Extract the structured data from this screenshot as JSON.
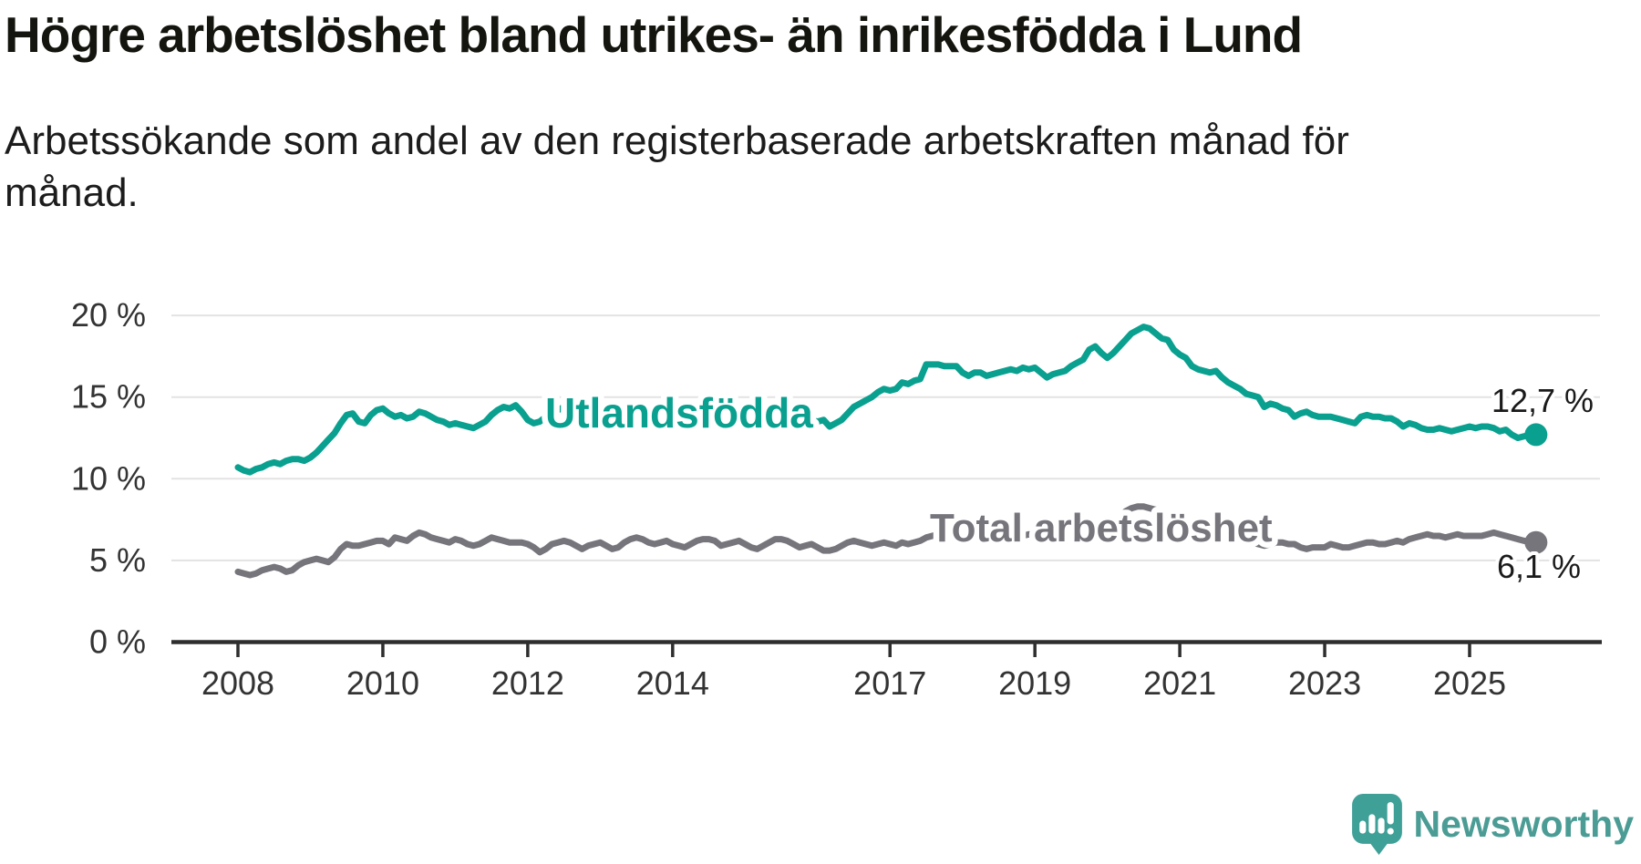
{
  "header": {
    "title": "Högre arbetslöshet bland utrikes- än inrikesfödda i Lund",
    "subtitle_line1": "Arbetssökande som andel av den registerbaserade arbetskraften månad för",
    "subtitle_line2": "månad."
  },
  "chart_data": {
    "type": "line",
    "title": "Högre arbetslöshet bland utrikes- än inrikesfödda i Lund",
    "subtitle": "Arbetssökande som andel av den registerbaserade arbetskraften månad för månad.",
    "x_start_year": 2008,
    "x_step_months": 1,
    "x_end": "2025-12",
    "x_ticks": [
      2008,
      2010,
      2012,
      2014,
      2017,
      2019,
      2021,
      2023,
      2025
    ],
    "y_ticks": [
      0,
      5,
      10,
      15,
      20
    ],
    "y_tick_suffix": " %",
    "ylim": [
      0,
      21
    ],
    "grid": true,
    "colors": {
      "utlandsfodda": "#0aa08f",
      "total": "#77757c",
      "gridline": "#e3e3e3",
      "axis": "#2e2e2e",
      "tick_label": "#333333",
      "value_label": "#1a1a1a"
    },
    "series": [
      {
        "name": "Utlandsfödda",
        "color": "#0aa08f",
        "end_label": "12,7 %",
        "end_value": 12.7,
        "values": [
          10.7,
          10.5,
          10.4,
          10.6,
          10.7,
          10.9,
          11.0,
          10.9,
          11.1,
          11.2,
          11.2,
          11.1,
          11.3,
          11.6,
          12.0,
          12.4,
          12.8,
          13.4,
          13.9,
          14.0,
          13.5,
          13.4,
          13.9,
          14.2,
          14.3,
          14.0,
          13.8,
          13.9,
          13.7,
          13.8,
          14.1,
          14.0,
          13.8,
          13.6,
          13.5,
          13.3,
          13.4,
          13.3,
          13.2,
          13.1,
          13.3,
          13.5,
          13.9,
          14.2,
          14.4,
          14.3,
          14.5,
          14.1,
          13.6,
          13.4,
          13.5,
          13.8,
          14.0,
          14.2,
          14.4,
          14.3,
          14.1,
          14.0,
          13.9,
          13.8,
          13.7,
          13.6,
          13.6,
          13.5,
          13.6,
          13.7,
          13.8,
          13.7,
          13.6,
          13.5,
          13.4,
          13.4,
          13.5,
          13.4,
          13.3,
          13.4,
          13.5,
          13.6,
          13.7,
          13.6,
          13.5,
          13.6,
          13.7,
          13.8,
          13.9,
          14.0,
          14.1,
          14.2,
          14.3,
          14.4,
          14.4,
          14.3,
          14.0,
          13.8,
          13.7,
          13.6,
          13.5,
          13.6,
          13.2,
          13.4,
          13.6,
          14.0,
          14.4,
          14.6,
          14.8,
          15.0,
          15.3,
          15.5,
          15.4,
          15.5,
          15.9,
          15.8,
          16.0,
          16.1,
          17.0,
          17.0,
          17.0,
          16.9,
          16.9,
          16.9,
          16.5,
          16.3,
          16.5,
          16.5,
          16.3,
          16.4,
          16.5,
          16.6,
          16.7,
          16.6,
          16.8,
          16.7,
          16.8,
          16.5,
          16.2,
          16.4,
          16.5,
          16.6,
          16.9,
          17.1,
          17.3,
          17.9,
          18.1,
          17.7,
          17.4,
          17.7,
          18.1,
          18.5,
          18.9,
          19.1,
          19.3,
          19.2,
          18.9,
          18.6,
          18.5,
          17.9,
          17.6,
          17.4,
          16.9,
          16.7,
          16.6,
          16.5,
          16.6,
          16.2,
          15.9,
          15.7,
          15.5,
          15.2,
          15.1,
          15.0,
          14.4,
          14.6,
          14.5,
          14.3,
          14.2,
          13.8,
          14.0,
          14.1,
          13.9,
          13.8,
          13.8,
          13.8,
          13.7,
          13.6,
          13.5,
          13.4,
          13.8,
          13.9,
          13.8,
          13.8,
          13.7,
          13.7,
          13.5,
          13.2,
          13.4,
          13.3,
          13.1,
          13.0,
          13.0,
          13.1,
          13.0,
          12.9,
          13.0,
          13.1,
          13.2,
          13.1,
          13.2,
          13.2,
          13.1,
          12.9,
          13.0,
          12.7,
          12.5,
          12.6,
          12.65,
          12.7
        ]
      },
      {
        "name": "Total arbetslöshet",
        "color": "#77757c",
        "end_label": "6,1 %",
        "end_value": 6.1,
        "values": [
          4.3,
          4.2,
          4.1,
          4.2,
          4.4,
          4.5,
          4.6,
          4.5,
          4.3,
          4.4,
          4.7,
          4.9,
          5.0,
          5.1,
          5.0,
          4.9,
          5.2,
          5.7,
          6.0,
          5.9,
          5.9,
          6.0,
          6.1,
          6.2,
          6.2,
          6.0,
          6.4,
          6.3,
          6.2,
          6.5,
          6.7,
          6.6,
          6.4,
          6.3,
          6.2,
          6.1,
          6.3,
          6.2,
          6.0,
          5.9,
          6.0,
          6.2,
          6.4,
          6.3,
          6.2,
          6.1,
          6.1,
          6.1,
          6.0,
          5.8,
          5.5,
          5.7,
          6.0,
          6.1,
          6.2,
          6.1,
          5.9,
          5.7,
          5.9,
          6.0,
          6.1,
          5.9,
          5.7,
          5.8,
          6.1,
          6.3,
          6.4,
          6.3,
          6.1,
          6.0,
          6.1,
          6.2,
          6.0,
          5.9,
          5.8,
          6.0,
          6.2,
          6.3,
          6.3,
          6.2,
          5.9,
          6.0,
          6.1,
          6.2,
          6.0,
          5.8,
          5.7,
          5.9,
          6.1,
          6.3,
          6.3,
          6.2,
          6.0,
          5.8,
          5.9,
          6.0,
          5.8,
          5.6,
          5.6,
          5.7,
          5.9,
          6.1,
          6.2,
          6.1,
          6.0,
          5.9,
          6.0,
          6.1,
          6.0,
          5.9,
          6.1,
          6.0,
          6.1,
          6.2,
          6.4,
          6.5,
          6.6,
          6.5,
          6.5,
          6.6,
          6.5,
          6.4,
          6.3,
          6.4,
          6.5,
          6.6,
          6.7,
          6.6,
          6.5,
          6.4,
          6.5,
          6.6,
          6.5,
          6.4,
          6.3,
          6.4,
          6.5,
          6.6,
          6.8,
          6.8,
          6.7,
          6.8,
          6.9,
          7.0,
          7.1,
          7.2,
          7.6,
          8.0,
          8.2,
          8.3,
          8.3,
          8.2,
          8.1,
          7.9,
          7.7,
          7.6,
          7.5,
          7.4,
          7.2,
          7.0,
          6.9,
          6.8,
          6.8,
          6.6,
          6.4,
          6.3,
          6.2,
          6.2,
          6.1,
          6.0,
          5.9,
          6.0,
          6.1,
          6.1,
          6.0,
          6.0,
          5.8,
          5.7,
          5.8,
          5.8,
          5.8,
          6.0,
          5.9,
          5.8,
          5.8,
          5.9,
          6.0,
          6.1,
          6.1,
          6.0,
          6.0,
          6.1,
          6.2,
          6.1,
          6.3,
          6.4,
          6.5,
          6.6,
          6.5,
          6.5,
          6.4,
          6.5,
          6.6,
          6.5,
          6.5,
          6.5,
          6.5,
          6.6,
          6.7,
          6.6,
          6.5,
          6.4,
          6.3,
          6.2,
          6.15,
          6.1
        ]
      }
    ],
    "legend_position": "inline-labels"
  },
  "branding": {
    "name": "Newsworthy",
    "icon": "bar-chart-speech-bubble-icon",
    "icon_color": "#3fa098",
    "text_color": "#4a9c95"
  }
}
